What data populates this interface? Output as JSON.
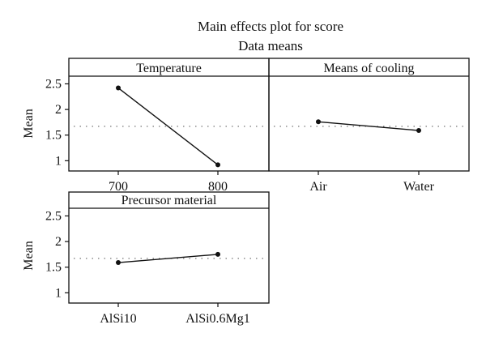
{
  "chart_data": {
    "type": "line",
    "title": "Main effects plot for score",
    "subtitle": "Data means",
    "ylabel": "Mean",
    "ylim": [
      0.8,
      2.65
    ],
    "yticks": [
      "1",
      "1.5",
      "2",
      "2.5"
    ],
    "ytick_values": [
      1,
      1.5,
      2,
      2.5
    ],
    "reference_line": 1.67,
    "reference_style": "dotted",
    "panels": [
      {
        "title": "Temperature",
        "categories": [
          "700",
          "800"
        ],
        "values": [
          2.42,
          0.92
        ]
      },
      {
        "title": "Means of cooling",
        "categories": [
          "Air",
          "Water"
        ],
        "values": [
          1.76,
          1.59
        ]
      },
      {
        "title": "Precursor material",
        "categories": [
          "AlSi10",
          "AlSi0.6Mg1"
        ],
        "values": [
          1.59,
          1.75
        ]
      }
    ],
    "colors": {
      "line": "#111111",
      "point": "#111111",
      "frame": "#111111",
      "reference": "#666666"
    }
  }
}
